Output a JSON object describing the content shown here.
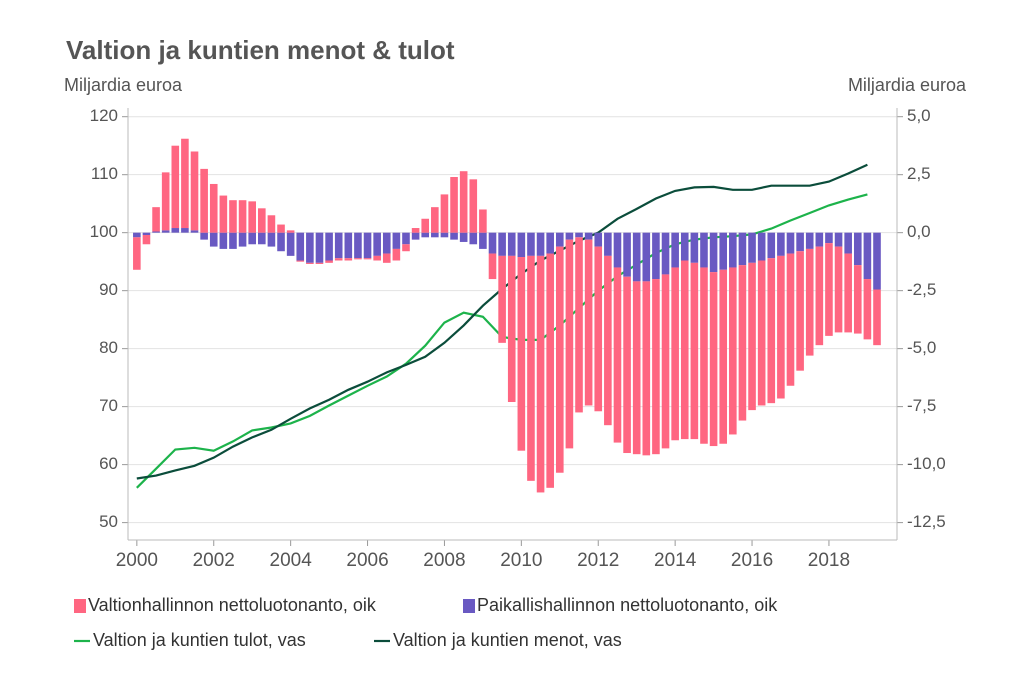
{
  "chart_data": {
    "type": "combo",
    "title": "Valtion ja kuntien menot & tulot",
    "y_label": "Miljardia euroa",
    "y2_label": "Miljardia euroa",
    "xlim": [
      1999.77,
      2019.77
    ],
    "xticks": [
      2000,
      2002,
      2004,
      2006,
      2008,
      2010,
      2012,
      2014,
      2016,
      2018
    ],
    "ylim": [
      47,
      121.5
    ],
    "yticks": [
      50,
      60,
      70,
      80,
      90,
      100,
      110,
      120
    ],
    "y2lim": [
      -13.25,
      5.375
    ],
    "y2ticks": [
      {
        "value": 5,
        "label": "5,0"
      },
      {
        "value": 2.5,
        "label": "2,5"
      },
      {
        "value": 0,
        "label": "0,0"
      },
      {
        "value": -2.5,
        "label": "-2,5"
      },
      {
        "value": -5,
        "label": "-5,0"
      },
      {
        "value": -7.5,
        "label": "-7,5"
      },
      {
        "value": -10,
        "label": "-10,0"
      },
      {
        "value": -12.5,
        "label": "-12,5"
      }
    ],
    "grid": true,
    "series": [
      {
        "name": "Valtionhallinnon nettoluotonanto, oik",
        "type": "bar",
        "axis": "y2",
        "color": "#ff6681",
        "x": [
          2000,
          2000.25,
          2000.5,
          2000.75,
          2001,
          2001.25,
          2001.5,
          2001.75,
          2002,
          2002.25,
          2002.5,
          2002.75,
          2003,
          2003.25,
          2003.5,
          2003.75,
          2004,
          2004.25,
          2004.5,
          2004.75,
          2005,
          2005.25,
          2005.5,
          2005.75,
          2006,
          2006.25,
          2006.5,
          2006.75,
          2007,
          2007.25,
          2007.5,
          2007.75,
          2008,
          2008.25,
          2008.5,
          2008.75,
          2009,
          2009.25,
          2009.5,
          2009.75,
          2010,
          2010.25,
          2010.5,
          2010.75,
          2011,
          2011.25,
          2011.5,
          2011.75,
          2012,
          2012.25,
          2012.5,
          2012.75,
          2013,
          2013.25,
          2013.5,
          2013.75,
          2014,
          2014.25,
          2014.5,
          2014.75,
          2015,
          2015.25,
          2015.5,
          2015.75,
          2016,
          2016.25,
          2016.5,
          2016.75,
          2017,
          2017.25,
          2017.5,
          2017.75,
          2018,
          2018.25,
          2018.5,
          2018.75,
          2019,
          2019.25
        ],
        "values": [
          -1.4,
          -0.4,
          1.05,
          2.5,
          3.55,
          3.85,
          3.4,
          2.75,
          2.1,
          1.6,
          1.4,
          1.4,
          1.35,
          1.05,
          0.75,
          0.35,
          0.1,
          -0.05,
          -0.05,
          -0.05,
          -0.1,
          -0.1,
          -0.1,
          -0.05,
          -0.05,
          -0.2,
          -0.4,
          -0.5,
          -0.3,
          0.2,
          0.6,
          1.1,
          1.65,
          2.4,
          2.65,
          2.3,
          1.0,
          -1.1,
          -3.75,
          -6.3,
          -8.35,
          -9.7,
          -10.2,
          -10.1,
          -9.75,
          -9.0,
          -7.55,
          -7.15,
          -7.1,
          -7.3,
          -7.55,
          -7.6,
          -7.45,
          -7.5,
          -7.55,
          -7.5,
          -7.45,
          -7.7,
          -7.6,
          -7.6,
          -7.5,
          -7.5,
          -7.2,
          -6.7,
          -6.35,
          -6.25,
          -6.25,
          -6.15,
          -5.7,
          -5.15,
          -4.6,
          -4.25,
          -4.0,
          -3.7,
          -3.4,
          -2.95,
          -2.6,
          -2.4
        ]
      },
      {
        "name": "Paikallishallinnon nettoluotonanto, oik",
        "type": "bar",
        "axis": "y2",
        "color": "#6959c2",
        "x": [
          2000,
          2000.25,
          2000.5,
          2000.75,
          2001,
          2001.25,
          2001.5,
          2001.75,
          2002,
          2002.25,
          2002.5,
          2002.75,
          2003,
          2003.25,
          2003.5,
          2003.75,
          2004,
          2004.25,
          2004.5,
          2004.75,
          2005,
          2005.25,
          2005.5,
          2005.75,
          2006,
          2006.25,
          2006.5,
          2006.75,
          2007,
          2007.25,
          2007.5,
          2007.75,
          2008,
          2008.25,
          2008.5,
          2008.75,
          2009,
          2009.25,
          2009.5,
          2009.75,
          2010,
          2010.25,
          2010.5,
          2010.75,
          2011,
          2011.25,
          2011.5,
          2011.75,
          2012,
          2012.25,
          2012.5,
          2012.75,
          2013,
          2013.25,
          2013.5,
          2013.75,
          2014,
          2014.25,
          2014.5,
          2014.75,
          2015,
          2015.25,
          2015.5,
          2015.75,
          2016,
          2016.25,
          2016.5,
          2016.75,
          2017,
          2017.25,
          2017.5,
          2017.75,
          2018,
          2018.25,
          2018.5,
          2018.75,
          2019,
          2019.25
        ],
        "values": [
          -0.2,
          -0.1,
          0.05,
          0.1,
          0.2,
          0.2,
          0.1,
          -0.3,
          -0.6,
          -0.7,
          -0.7,
          -0.6,
          -0.5,
          -0.5,
          -0.6,
          -0.8,
          -1.0,
          -1.2,
          -1.3,
          -1.3,
          -1.2,
          -1.1,
          -1.1,
          -1.1,
          -1.1,
          -1.0,
          -0.9,
          -0.7,
          -0.5,
          -0.3,
          -0.2,
          -0.2,
          -0.2,
          -0.3,
          -0.4,
          -0.5,
          -0.7,
          -0.9,
          -1.0,
          -1.0,
          -1.05,
          -1.0,
          -1.0,
          -0.9,
          -0.6,
          -0.3,
          -0.2,
          -0.3,
          -0.6,
          -1.0,
          -1.5,
          -1.9,
          -2.1,
          -2.1,
          -2.0,
          -1.8,
          -1.5,
          -1.2,
          -1.3,
          -1.5,
          -1.7,
          -1.6,
          -1.5,
          -1.4,
          -1.3,
          -1.2,
          -1.1,
          -1.0,
          -0.9,
          -0.8,
          -0.7,
          -0.6,
          -0.45,
          -0.6,
          -0.9,
          -1.4,
          -2.0,
          -2.45
        ]
      },
      {
        "name": "Valtion ja kuntien tulot, vas",
        "type": "line",
        "axis": "y",
        "color": "#1db34b",
        "x": [
          2000,
          2000.5,
          2001,
          2001.5,
          2002,
          2002.5,
          2003,
          2003.5,
          2004,
          2004.5,
          2005,
          2005.5,
          2006,
          2006.5,
          2007,
          2007.5,
          2008,
          2008.5,
          2009,
          2009.5,
          2010,
          2010.5,
          2011,
          2011.5,
          2012,
          2012.5,
          2013,
          2013.5,
          2014,
          2014.5,
          2015,
          2015.5,
          2016,
          2016.5,
          2017,
          2017.5,
          2018,
          2018.5,
          2019
        ],
        "values": [
          56.0,
          59.3,
          62.6,
          62.9,
          62.4,
          64.0,
          65.9,
          66.4,
          67.1,
          68.4,
          70.2,
          71.9,
          73.6,
          75.2,
          77.4,
          80.5,
          84.5,
          86.2,
          85.5,
          82.0,
          81.5,
          81.5,
          84.0,
          87.0,
          90.0,
          92.5,
          94.5,
          96.5,
          98.0,
          98.8,
          99.2,
          99.4,
          99.7,
          100.7,
          102.1,
          103.4,
          104.7,
          105.7,
          106.6
        ]
      },
      {
        "name": "Valtion ja kuntien menot, vas",
        "type": "line",
        "axis": "y",
        "color": "#0b4d3b",
        "x": [
          2000,
          2000.5,
          2001,
          2001.5,
          2002,
          2002.5,
          2003,
          2003.5,
          2004,
          2004.5,
          2005,
          2005.5,
          2006,
          2006.5,
          2007,
          2007.5,
          2008,
          2008.5,
          2009,
          2009.5,
          2010,
          2010.5,
          2011,
          2011.5,
          2012,
          2012.5,
          2013,
          2013.5,
          2014,
          2014.5,
          2015,
          2015.5,
          2016,
          2016.5,
          2017,
          2017.5,
          2018,
          2018.5,
          2019
        ],
        "values": [
          57.6,
          58.1,
          59.0,
          59.8,
          61.2,
          63.1,
          64.7,
          66.0,
          67.9,
          69.7,
          71.2,
          72.9,
          74.3,
          75.9,
          77.2,
          78.6,
          81.0,
          84.0,
          87.4,
          90.3,
          92.9,
          95.2,
          96.9,
          98.6,
          100.0,
          102.4,
          104.1,
          105.9,
          107.2,
          107.8,
          107.9,
          107.4,
          107.4,
          108.1,
          108.1,
          108.1,
          108.8,
          110.2,
          111.7
        ]
      }
    ]
  }
}
